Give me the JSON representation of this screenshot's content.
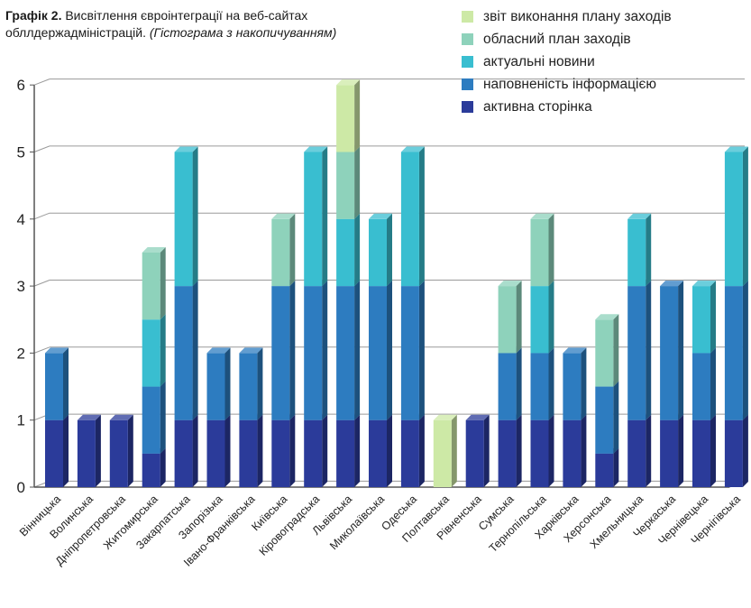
{
  "title": {
    "lead": "Графік 2.",
    "main": "Висвітлення євроінтеграції на веб-сайтах обллдержадміністрацій.",
    "note": "(Гістограма з накопичуванням)"
  },
  "colors": {
    "активна сторінка": "#2b3b9a",
    "наповненість інформацією": "#2d7cc0",
    "актуальні новини": "#39bed0",
    "обласний план заходів": "#8ed2bb",
    "звіт виконання плану заходів": "#cde9a6",
    "axis": "#555555",
    "grid": "#9a9a9a"
  },
  "chart_data": {
    "type": "bar",
    "stacked": true,
    "three_d": true,
    "ylim": [
      0,
      6
    ],
    "yticks": [
      "0",
      "1",
      "2",
      "3",
      "4",
      "5",
      "6"
    ],
    "grid": true,
    "legend_position": "top-right",
    "legend_order": [
      "звіт виконання плану заходів",
      "обласний план заходів",
      "актуальні новини",
      "наповненість інформацією",
      "активна сторінка"
    ],
    "categories": [
      "Вінницька",
      "Волинська",
      "Дніпропетровська",
      "Житомирська",
      "Закарпатська",
      "Запорізька",
      "Івано-Франківська",
      "Київська",
      "Кіровоградська",
      "Львівська",
      "Миколаївська",
      "Одеська",
      "Полтавська",
      "Рівненська",
      "Сумська",
      "Тернопільська",
      "Харківська",
      "Херсонська",
      "Хмельницька",
      "Черкаська",
      "Чернівецька",
      "Чернігівська"
    ],
    "series": [
      {
        "name": "активна сторінка",
        "values": [
          1,
          1,
          1,
          0.5,
          1,
          1,
          1,
          1,
          1,
          1,
          1,
          1,
          0,
          1,
          1,
          1,
          1,
          0.5,
          1,
          1,
          1,
          1
        ]
      },
      {
        "name": "наповненість інформацією",
        "values": [
          1,
          0,
          0,
          1,
          2,
          1,
          1,
          2,
          2,
          2,
          2,
          2,
          0,
          0,
          1,
          1,
          1,
          1,
          2,
          2,
          1,
          2
        ]
      },
      {
        "name": "актуальні новини",
        "values": [
          0,
          0,
          0,
          1,
          2,
          0,
          0,
          0,
          2,
          1,
          1,
          2,
          0,
          0,
          0,
          1,
          0,
          0,
          1,
          0,
          1,
          2
        ]
      },
      {
        "name": "обласний план заходів",
        "values": [
          0,
          0,
          0,
          1,
          0,
          0,
          0,
          1,
          0,
          1,
          0,
          0,
          0,
          0,
          1,
          1,
          0,
          1,
          0,
          0,
          0,
          0
        ]
      },
      {
        "name": "звіт виконання плану заходів",
        "values": [
          0,
          0,
          0,
          0,
          0,
          0,
          0,
          0,
          0,
          1,
          0,
          0,
          1,
          0,
          0,
          0,
          0,
          0,
          0,
          0,
          0,
          0
        ]
      }
    ]
  }
}
